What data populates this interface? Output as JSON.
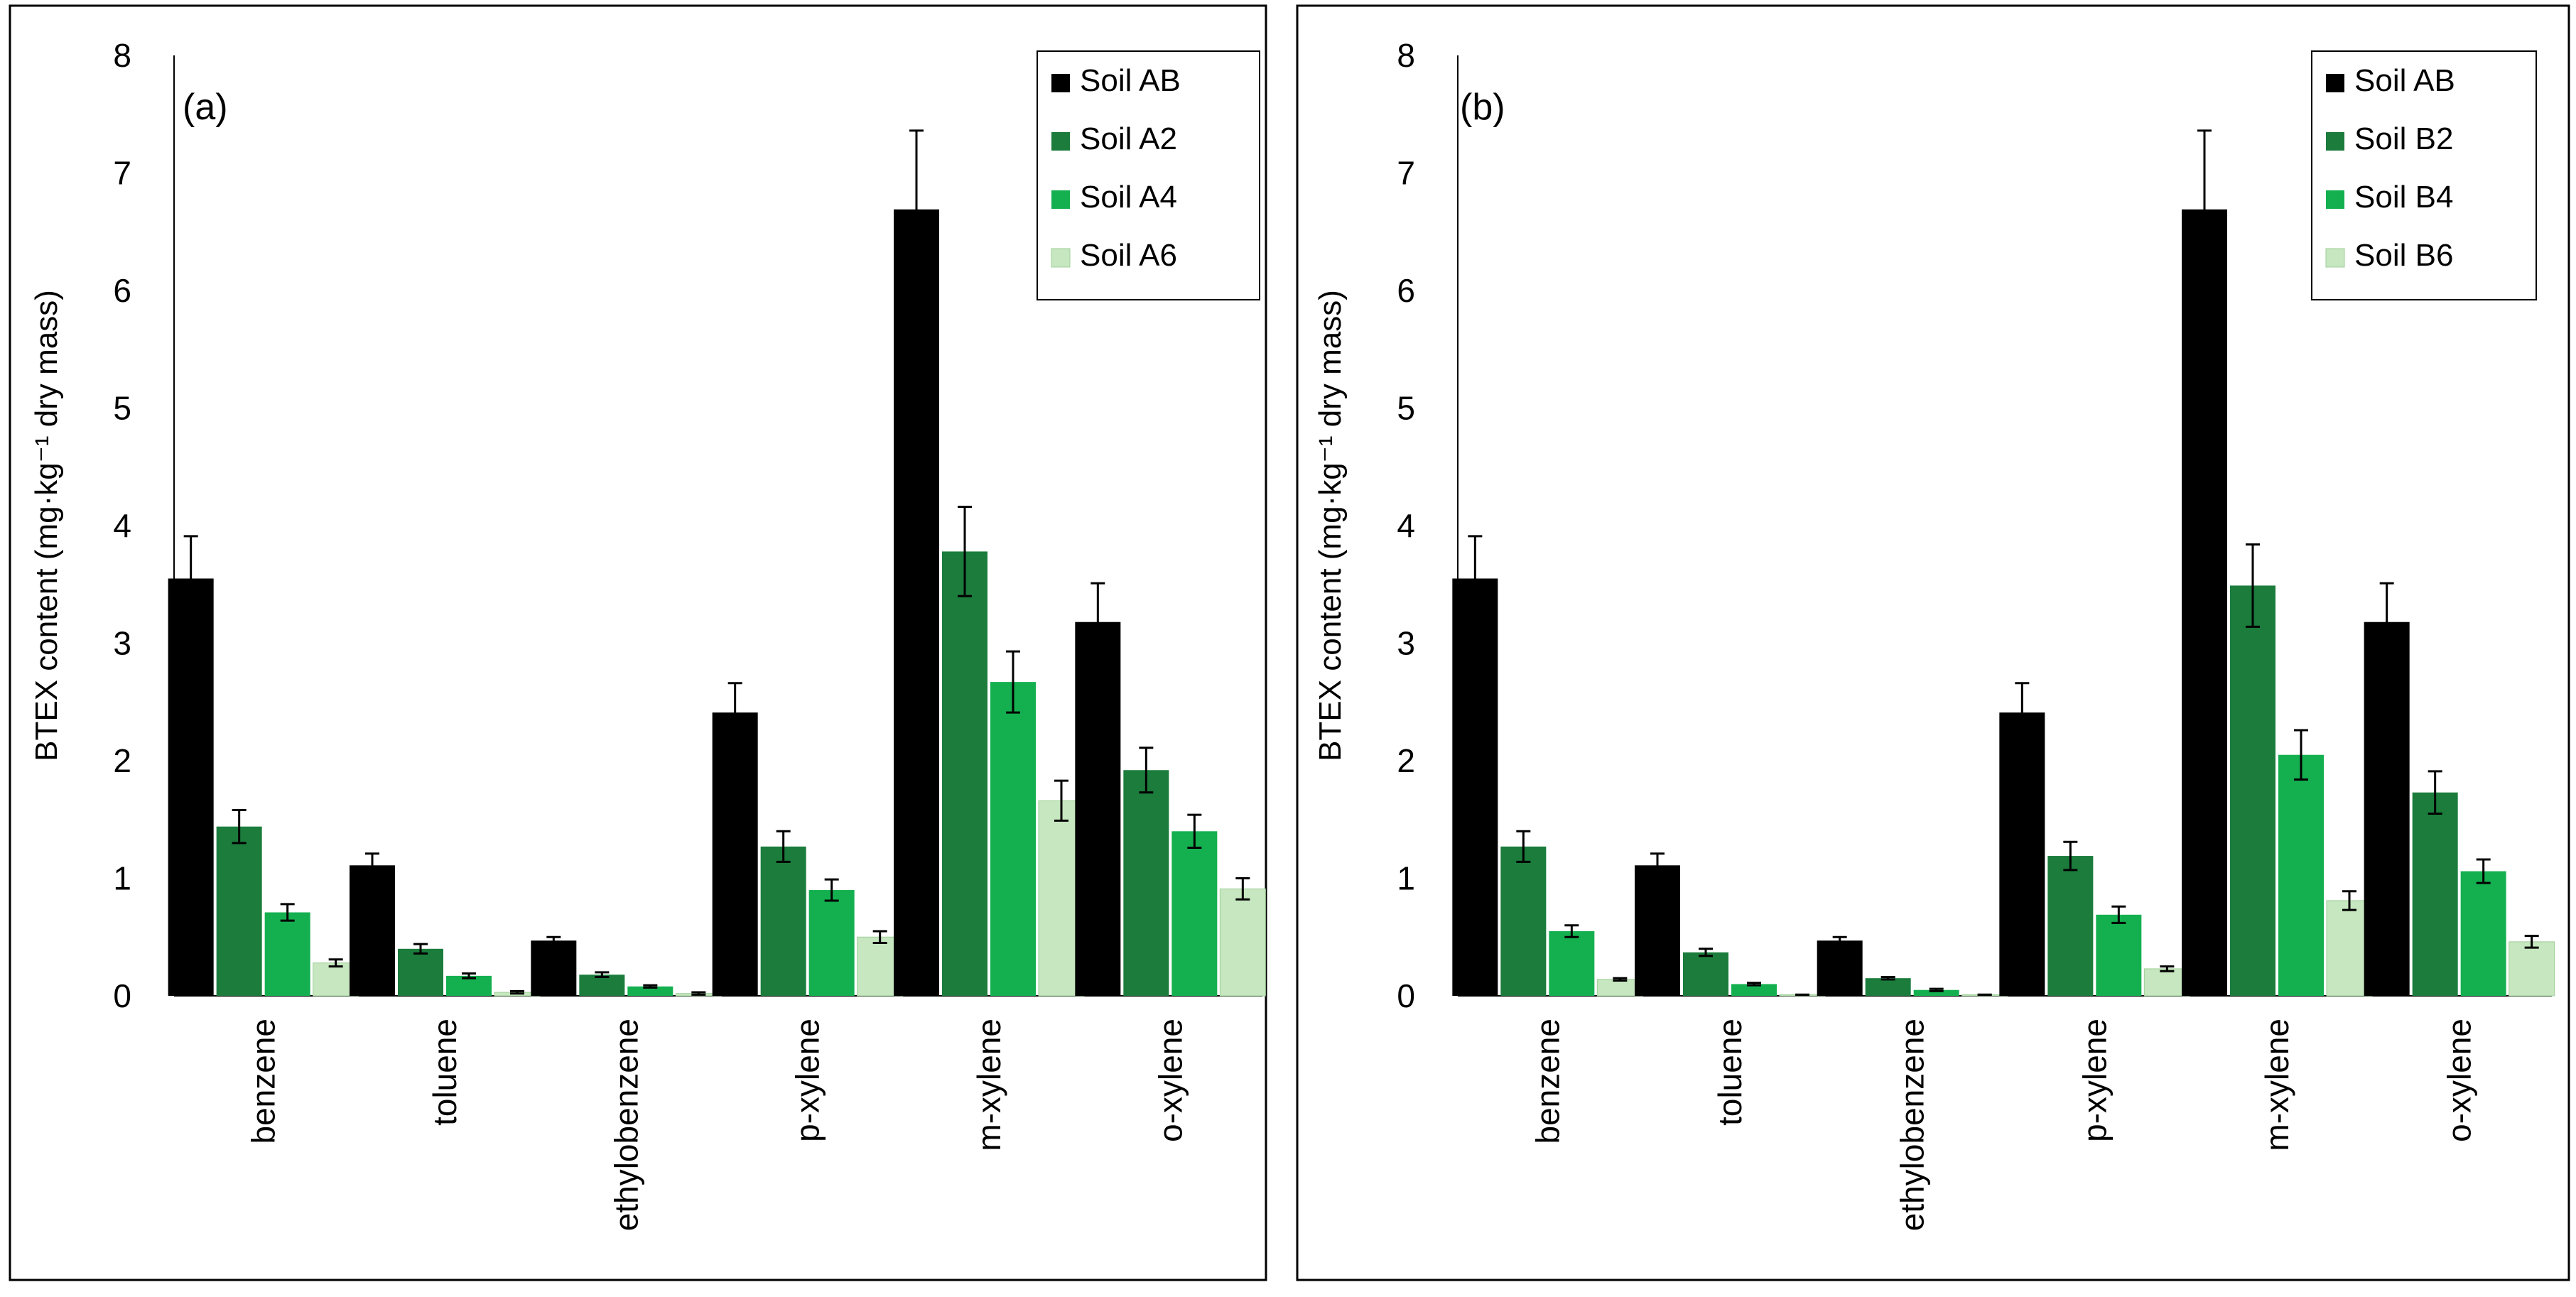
{
  "chart_data": [
    {
      "type": "bar",
      "panel_label": "(a)",
      "ylabel": "BTEX content (mg·kg⁻¹ dry mass)",
      "xlabel": "",
      "ylim": [
        0,
        8
      ],
      "yticks": [
        "0",
        "1",
        "2",
        "3",
        "4",
        "5",
        "6",
        "7",
        "8"
      ],
      "categories": [
        "benzene",
        "toluene",
        "ethylobenzene",
        "p-xylene",
        "m-xylene",
        "o-xylene"
      ],
      "legend_position": "top-right",
      "series": [
        {
          "name": "Soil AB",
          "color": "#000000",
          "values": [
            3.55,
            1.11,
            0.47,
            2.41,
            6.69,
            3.18
          ],
          "errors": [
            0.36,
            0.1,
            0.03,
            0.25,
            0.67,
            0.33
          ]
        },
        {
          "name": "Soil A2",
          "color": "#1b7c3c",
          "values": [
            1.44,
            0.4,
            0.18,
            1.27,
            3.78,
            1.92
          ],
          "errors": [
            0.14,
            0.04,
            0.02,
            0.13,
            0.38,
            0.19
          ]
        },
        {
          "name": "Soil A4",
          "color": "#14b050",
          "values": [
            0.71,
            0.17,
            0.08,
            0.9,
            2.67,
            1.4
          ],
          "errors": [
            0.07,
            0.02,
            0.01,
            0.09,
            0.26,
            0.14
          ]
        },
        {
          "name": "Soil A6",
          "color": "#c6e7bf",
          "values": [
            0.28,
            0.03,
            0.02,
            0.5,
            1.66,
            0.91
          ],
          "errors": [
            0.03,
            0.01,
            0.01,
            0.05,
            0.17,
            0.09
          ]
        }
      ]
    },
    {
      "type": "bar",
      "panel_label": "(b)",
      "ylabel": "BTEX content (mg·kg⁻¹ dry mass)",
      "xlabel": "",
      "ylim": [
        0,
        8
      ],
      "yticks": [
        "0",
        "1",
        "2",
        "3",
        "4",
        "5",
        "6",
        "7",
        "8"
      ],
      "categories": [
        "benzene",
        "toluene",
        "ethylobenzene",
        "p-xylene",
        "m-xylene",
        "o-xylene"
      ],
      "legend_position": "top-right",
      "series": [
        {
          "name": "Soil AB",
          "color": "#000000",
          "values": [
            3.55,
            1.11,
            0.47,
            2.41,
            6.69,
            3.18
          ],
          "errors": [
            0.36,
            0.1,
            0.03,
            0.25,
            0.67,
            0.33
          ]
        },
        {
          "name": "Soil B2",
          "color": "#1b7c3c",
          "values": [
            1.27,
            0.37,
            0.15,
            1.19,
            3.49,
            1.73
          ],
          "errors": [
            0.13,
            0.03,
            0.01,
            0.12,
            0.35,
            0.18
          ]
        },
        {
          "name": "Soil B4",
          "color": "#14b050",
          "values": [
            0.55,
            0.1,
            0.05,
            0.69,
            2.05,
            1.06
          ],
          "errors": [
            0.05,
            0.01,
            0.01,
            0.07,
            0.21,
            0.1
          ]
        },
        {
          "name": "Soil B6",
          "color": "#c6e7bf",
          "values": [
            0.14,
            0.01,
            0.01,
            0.23,
            0.81,
            0.46
          ],
          "errors": [
            0.01,
            0.0,
            0.0,
            0.02,
            0.08,
            0.05
          ]
        }
      ]
    }
  ]
}
